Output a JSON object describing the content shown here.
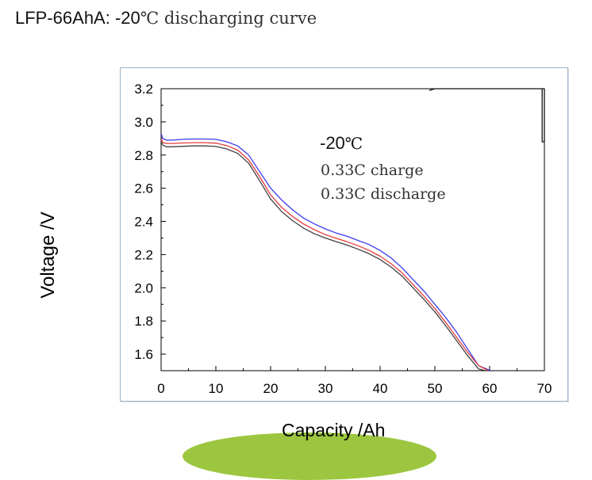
{
  "title": {
    "prefix": "LFP-66AhA: -20",
    "suffix": "℃ discharging curve"
  },
  "annotations": {
    "temp_prefix": "-20",
    "temp_suffix": "℃",
    "charge": "0.33C charge",
    "discharge": "0.33C discharge"
  },
  "chart_data": {
    "type": "line",
    "title": "LFP-66AhA: -20℃ discharging curve",
    "xlabel": "Capacity /Ah",
    "ylabel": "Voltage /V",
    "xlim": [
      0,
      70
    ],
    "ylim": [
      1.5,
      3.2
    ],
    "xticks": [
      0,
      10,
      20,
      30,
      40,
      50,
      60,
      70
    ],
    "yticks": [
      1.6,
      1.8,
      2.0,
      2.2,
      2.4,
      2.6,
      2.8,
      3.0,
      3.2
    ],
    "ytick_labels": [
      "1.6",
      "1.8",
      "2.0",
      "2.2",
      "2.4",
      "2.6",
      "2.8",
      "3.0",
      "3.2"
    ],
    "series": [
      {
        "name": "blue",
        "color": "#3a3af0",
        "x": [
          0,
          0.3,
          1,
          2,
          4,
          6,
          8,
          10,
          12,
          14,
          16,
          18,
          20,
          22,
          24,
          26,
          28,
          30,
          32,
          34,
          36,
          38,
          40,
          42,
          44,
          46,
          48,
          50,
          52,
          54,
          56,
          58,
          60.2
        ],
        "y": [
          2.93,
          2.9,
          2.89,
          2.89,
          2.895,
          2.897,
          2.897,
          2.895,
          2.88,
          2.855,
          2.8,
          2.7,
          2.6,
          2.53,
          2.47,
          2.42,
          2.385,
          2.355,
          2.33,
          2.31,
          2.285,
          2.26,
          2.225,
          2.18,
          2.12,
          2.05,
          1.98,
          1.9,
          1.82,
          1.73,
          1.63,
          1.53,
          1.5
        ]
      },
      {
        "name": "red",
        "color": "#e83a3a",
        "x": [
          0,
          0.3,
          1,
          2,
          4,
          6,
          8,
          10,
          12,
          14,
          16,
          18,
          20,
          22,
          24,
          26,
          28,
          30,
          32,
          34,
          36,
          38,
          40,
          42,
          44,
          46,
          48,
          50,
          52,
          54,
          56,
          58,
          59.8
        ],
        "y": [
          2.9,
          2.875,
          2.87,
          2.87,
          2.873,
          2.875,
          2.875,
          2.872,
          2.857,
          2.83,
          2.77,
          2.67,
          2.56,
          2.485,
          2.43,
          2.385,
          2.35,
          2.32,
          2.298,
          2.277,
          2.253,
          2.225,
          2.19,
          2.145,
          2.09,
          2.02,
          1.95,
          1.875,
          1.79,
          1.7,
          1.61,
          1.53,
          1.5
        ]
      },
      {
        "name": "black",
        "color": "#404040",
        "x": [
          0,
          0.3,
          1,
          2,
          4,
          6,
          8,
          10,
          12,
          14,
          16,
          18,
          20,
          22,
          24,
          26,
          28,
          30,
          32,
          34,
          36,
          38,
          40,
          42,
          44,
          46,
          48,
          50,
          52,
          54,
          56,
          58,
          59.3
        ],
        "y": [
          2.88,
          2.86,
          2.85,
          2.85,
          2.853,
          2.855,
          2.855,
          2.852,
          2.837,
          2.81,
          2.75,
          2.645,
          2.535,
          2.46,
          2.405,
          2.36,
          2.325,
          2.3,
          2.278,
          2.257,
          2.232,
          2.205,
          2.17,
          2.125,
          2.07,
          2.0,
          1.93,
          1.855,
          1.77,
          1.68,
          1.59,
          1.51,
          1.5
        ]
      },
      {
        "name": "charge",
        "color": "#111111",
        "x": [
          49,
          50,
          55,
          60,
          65,
          69.5,
          70,
          70,
          69.6,
          69.6
        ],
        "y": [
          3.19,
          3.2,
          3.2,
          3.2,
          3.2,
          3.2,
          3.2,
          2.88,
          2.88,
          3.2
        ]
      }
    ]
  }
}
